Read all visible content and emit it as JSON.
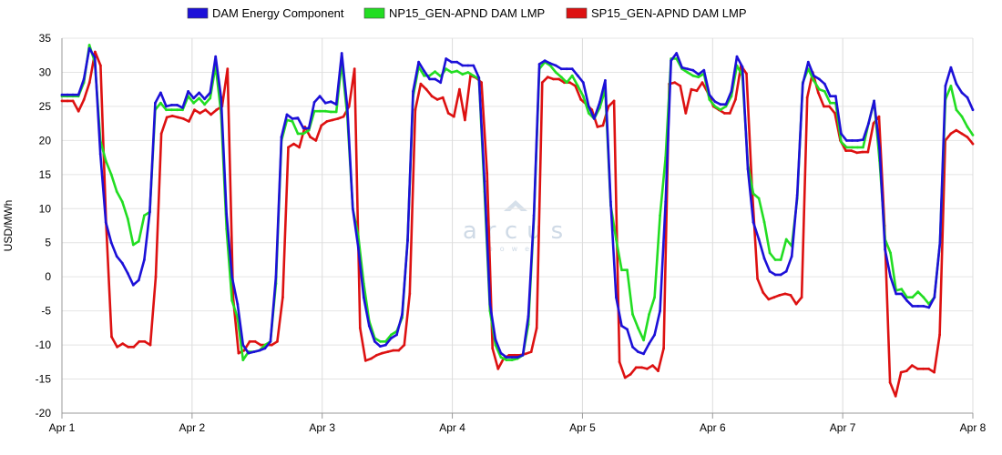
{
  "chart_data": {
    "type": "line",
    "title": "",
    "xlabel": "",
    "ylabel": "USD/MWh",
    "ylim": [
      -20,
      35
    ],
    "y_ticks": [
      35,
      30,
      25,
      20,
      15,
      10,
      5,
      0,
      -5,
      -10,
      -15,
      -20
    ],
    "x_tick_labels": [
      "Apr 1",
      "Apr 2",
      "Apr 3",
      "Apr 4",
      "Apr 5",
      "Apr 6",
      "Apr 7",
      "Apr 8"
    ],
    "grid": true,
    "legend_position": "top-center",
    "watermark": {
      "name": "arcus-logo",
      "text": "arcus",
      "subtext": "power"
    },
    "series": [
      {
        "name": "DAM Energy Component",
        "color": "#1c10d8",
        "values": [
          26.7,
          26.7,
          26.7,
          26.7,
          29,
          33.5,
          32.2,
          18,
          8,
          5,
          3,
          2,
          0.5,
          -1.2,
          -0.5,
          2.5,
          9.5,
          25.5,
          27,
          25,
          25.2,
          25.2,
          24.8,
          27.2,
          26.2,
          27,
          26.1,
          27,
          32.3,
          26.3,
          9.2,
          0,
          -4,
          -10,
          -11.2,
          -11,
          -10.8,
          -10.5,
          -9.5,
          0,
          20.5,
          23.8,
          23.2,
          23.3,
          21.8,
          21.8,
          25.6,
          26.5,
          25.5,
          25.7,
          25.3,
          32.8,
          24.8,
          10,
          4.3,
          -3,
          -7.2,
          -9.5,
          -10.2,
          -10,
          -9,
          -8.5,
          -5.5,
          5.3,
          27.2,
          31.5,
          30.2,
          29,
          29,
          28.5,
          32,
          31.5,
          31.5,
          31,
          31,
          31,
          29.2,
          14,
          -4,
          -9.2,
          -11.2,
          -11.8,
          -11.8,
          -11.8,
          -11.5,
          -5.8,
          9,
          31.2,
          31.7,
          31.3,
          31,
          30.5,
          30.5,
          30.5,
          29.5,
          28.5,
          25,
          23.2,
          25.6,
          28.8,
          11,
          -3,
          -7.2,
          -7.7,
          -10.3,
          -11,
          -11.3,
          -9.8,
          -8.5,
          -5,
          11,
          31.7,
          32.8,
          30.7,
          30.5,
          30.3,
          29.7,
          30.3,
          26.7,
          25.7,
          25.3,
          25.3,
          27.2,
          32.3,
          30.8,
          15.8,
          8,
          5.5,
          2.7,
          0.8,
          0.3,
          0.3,
          0.8,
          3,
          12,
          28.3,
          31.5,
          29.5,
          29,
          28.3,
          26.5,
          26.5,
          21,
          20,
          20,
          20,
          20.1,
          22.5,
          25.8,
          18.8,
          4,
          0,
          -2.5,
          -2.5,
          -3.5,
          -4.3,
          -4.3,
          -4.3,
          -4.5,
          -3,
          5,
          28,
          30.7,
          28.3,
          27,
          26.3,
          24.5
        ]
      },
      {
        "name": "NP15_GEN-APND DAM LMP",
        "color": "#22dd22",
        "values": [
          26.5,
          26.5,
          26.5,
          26.5,
          28.5,
          34,
          31.5,
          20,
          17,
          15,
          12.5,
          11,
          8.5,
          4.7,
          5.2,
          9,
          9.5,
          24.5,
          25.5,
          24.5,
          24.5,
          24.5,
          24.5,
          26.5,
          25.5,
          26.2,
          25.3,
          26.2,
          31,
          24,
          7,
          -3.5,
          -6,
          -12.2,
          -11,
          -11,
          -10.8,
          -10,
          -9.5,
          -1,
          20,
          23,
          22.8,
          21,
          21,
          21.5,
          24.3,
          24.3,
          24.3,
          24.2,
          24.2,
          31.5,
          23.5,
          10,
          6,
          -1,
          -6.5,
          -9,
          -9.5,
          -9.5,
          -8.5,
          -8,
          -6,
          5.5,
          26.5,
          30.8,
          29.5,
          29.5,
          30.1,
          29.4,
          30.5,
          30,
          30.2,
          29.7,
          30,
          29.5,
          29,
          12.5,
          -5,
          -10,
          -11.8,
          -12.2,
          -12.2,
          -12,
          -11.5,
          -7,
          8.5,
          30.5,
          31.5,
          31,
          30,
          29.3,
          28.5,
          29.5,
          28,
          26.5,
          24,
          23.2,
          24.8,
          27.5,
          10.5,
          5.5,
          1,
          1,
          -5.5,
          -7.5,
          -9.3,
          -5.5,
          -3,
          9,
          17.5,
          32,
          32,
          30.5,
          30,
          29.5,
          29.3,
          29.8,
          26,
          25,
          24.5,
          25,
          26.5,
          31,
          29.5,
          16.5,
          12.2,
          11.5,
          8,
          3.5,
          2.5,
          2.5,
          5.5,
          4.5,
          11.5,
          28.5,
          30.5,
          28.8,
          27.5,
          27.2,
          25.5,
          25.5,
          19.8,
          19,
          19,
          19,
          19,
          22.5,
          25.8,
          17,
          5.5,
          3.5,
          -2,
          -1.8,
          -3,
          -3,
          -2.2,
          -3,
          -4,
          -3,
          5,
          26,
          28,
          24.5,
          23.5,
          22,
          20.8
        ]
      },
      {
        "name": "SP15_GEN-APND DAM LMP",
        "color": "#dd1111",
        "values": [
          25.8,
          25.8,
          25.8,
          24.3,
          26,
          28.5,
          33,
          31,
          7.8,
          -8.8,
          -10.3,
          -9.8,
          -10.3,
          -10.3,
          -9.5,
          -9.5,
          -10,
          0,
          21,
          23.4,
          23.6,
          23.4,
          23.2,
          22.8,
          24.5,
          24,
          24.5,
          23.8,
          24.5,
          25,
          30.5,
          -3,
          -11.2,
          -10.8,
          -9.5,
          -9.5,
          -10,
          -10,
          -10,
          -9.5,
          -3,
          19,
          19.5,
          19,
          22,
          20.5,
          20,
          22.2,
          22.8,
          23,
          23.2,
          23.5,
          25,
          30.5,
          -7.5,
          -12.3,
          -12,
          -11.5,
          -11.2,
          -11,
          -10.8,
          -10.8,
          -10,
          -2.5,
          24.5,
          28.3,
          27.5,
          26.5,
          26,
          26.3,
          24,
          23.5,
          27.5,
          23,
          29.5,
          29.2,
          28.5,
          15.2,
          -10.5,
          -13.5,
          -12,
          -11.5,
          -11.5,
          -11.5,
          -11.3,
          -11,
          -7.5,
          28.5,
          29.3,
          29,
          29,
          28.5,
          28.5,
          28,
          26,
          25.3,
          24.5,
          22,
          22.2,
          25,
          25.8,
          -12.5,
          -14.8,
          -14.3,
          -13.3,
          -13.3,
          -13.5,
          -13,
          -13.8,
          -10.5,
          28.3,
          28.5,
          28,
          24,
          27.5,
          27.3,
          28.5,
          27,
          25,
          24.5,
          24,
          24,
          26,
          31,
          29.8,
          13,
          -0.3,
          -2.3,
          -3.3,
          -3,
          -2.7,
          -2.5,
          -2.7,
          -4,
          -3,
          26.3,
          30,
          27,
          25,
          25,
          24,
          20,
          18.5,
          18.5,
          18.2,
          18.3,
          18.3,
          22.5,
          23.5,
          7.5,
          -15.5,
          -17.5,
          -14,
          -13.8,
          -13,
          -13.5,
          -13.5,
          -13.5,
          -14,
          -8.5,
          20,
          21,
          21.5,
          21,
          20.5,
          19.5
        ]
      }
    ]
  }
}
